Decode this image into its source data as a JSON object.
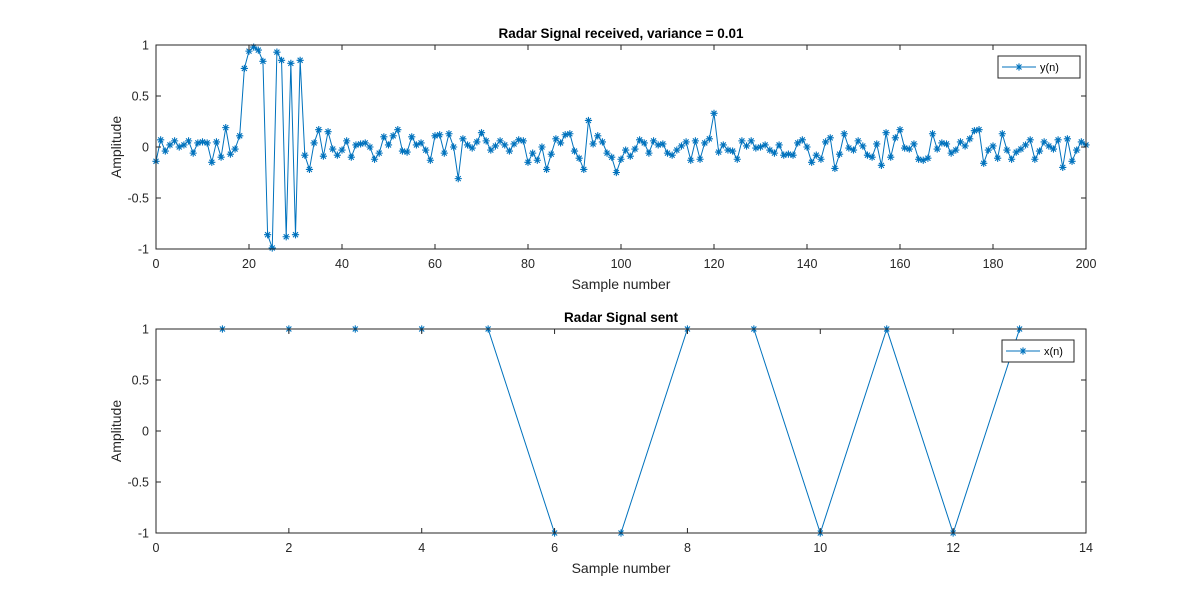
{
  "chart_data": [
    {
      "type": "line",
      "title": "Radar Signal received, variance = 0.01",
      "xlabel": "Sample number",
      "ylabel": "Amplitude",
      "xlim": [
        0,
        200
      ],
      "ylim": [
        -1,
        1
      ],
      "xticks": [
        0,
        20,
        40,
        60,
        80,
        100,
        120,
        140,
        160,
        180,
        200
      ],
      "yticks": [
        -1,
        -0.5,
        0,
        0.5,
        1
      ],
      "grid": false,
      "legend_position": "top-right",
      "marker": "*",
      "series": [
        {
          "name": "y(n)",
          "color": "#0072BD",
          "x": [
            0,
            1,
            2,
            3,
            4,
            5,
            6,
            7,
            8,
            9,
            10,
            11,
            12,
            13,
            14,
            15,
            16,
            17,
            18,
            19,
            20,
            21,
            22,
            23,
            24,
            25,
            26,
            27,
            28,
            29,
            30,
            31,
            32,
            33,
            34,
            35,
            36,
            37,
            38,
            39,
            40,
            41,
            42,
            43,
            44,
            45,
            46,
            47,
            48,
            49,
            50,
            51,
            52,
            53,
            54,
            55,
            56,
            57,
            58,
            59,
            60,
            61,
            62,
            63,
            64,
            65,
            66,
            67,
            68,
            69,
            70,
            71,
            72,
            73,
            74,
            75,
            76,
            77,
            78,
            79,
            80,
            81,
            82,
            83,
            84,
            85,
            86,
            87,
            88,
            89,
            90,
            91,
            92,
            93,
            94,
            95,
            96,
            97,
            98,
            99,
            100,
            101,
            102,
            103,
            104,
            105,
            106,
            107,
            108,
            109,
            110,
            111,
            112,
            113,
            114,
            115,
            116,
            117,
            118,
            119,
            120,
            121,
            122,
            123,
            124,
            125,
            126,
            127,
            128,
            129,
            130,
            131,
            132,
            133,
            134,
            135,
            136,
            137,
            138,
            139,
            140,
            141,
            142,
            143,
            144,
            145,
            146,
            147,
            148,
            149,
            150,
            151,
            152,
            153,
            154,
            155,
            156,
            157,
            158,
            159,
            160,
            161,
            162,
            163,
            164,
            165,
            166,
            167,
            168,
            169,
            170,
            171,
            172,
            173,
            174,
            175,
            176,
            177,
            178,
            179,
            180,
            181,
            182,
            183,
            184,
            185,
            186,
            187,
            188,
            189,
            190,
            191,
            192,
            193,
            194,
            195,
            196,
            197,
            198,
            199,
            200
          ],
          "y": [
            -0.14,
            0.07,
            -0.04,
            0.02,
            0.06,
            0.0,
            0.02,
            0.06,
            -0.06,
            0.04,
            0.05,
            0.04,
            -0.15,
            0.05,
            -0.1,
            0.19,
            -0.07,
            -0.02,
            0.11,
            0.77,
            0.94,
            0.98,
            0.95,
            0.84,
            -0.86,
            -0.99,
            0.93,
            0.85,
            -0.88,
            0.82,
            -0.86,
            0.85,
            -0.08,
            -0.22,
            0.04,
            0.17,
            -0.09,
            0.15,
            -0.02,
            -0.08,
            -0.03,
            0.06,
            -0.1,
            0.02,
            0.03,
            0.04,
            0.0,
            -0.12,
            -0.06,
            0.1,
            0.02,
            0.11,
            0.17,
            -0.04,
            -0.05,
            0.1,
            0.02,
            0.04,
            -0.03,
            -0.13,
            0.11,
            0.12,
            -0.06,
            0.13,
            0.0,
            -0.31,
            0.08,
            0.02,
            -0.01,
            0.05,
            0.14,
            0.06,
            -0.03,
            0.01,
            0.06,
            0.02,
            -0.04,
            0.03,
            0.07,
            0.06,
            -0.15,
            -0.06,
            -0.13,
            0.0,
            -0.22,
            -0.07,
            0.08,
            0.04,
            0.12,
            0.13,
            -0.04,
            -0.11,
            -0.22,
            0.26,
            0.03,
            0.11,
            0.05,
            -0.06,
            -0.1,
            -0.25,
            -0.12,
            -0.03,
            -0.09,
            -0.02,
            0.07,
            0.04,
            -0.06,
            0.06,
            0.02,
            0.03,
            -0.06,
            -0.08,
            -0.03,
            0.01,
            0.05,
            -0.13,
            0.06,
            -0.12,
            0.04,
            0.08,
            0.33,
            -0.05,
            0.02,
            -0.03,
            -0.04,
            -0.12,
            0.06,
            0.01,
            0.06,
            -0.01,
            0.0,
            0.02,
            -0.03,
            -0.06,
            0.02,
            -0.08,
            -0.07,
            -0.08,
            0.04,
            0.07,
            0.0,
            -0.15,
            -0.08,
            -0.12,
            0.05,
            0.09,
            -0.21,
            -0.07,
            0.13,
            -0.01,
            -0.03,
            0.06,
            0.01,
            -0.08,
            -0.1,
            0.03,
            -0.18,
            0.14,
            -0.1,
            0.09,
            0.17,
            -0.01,
            -0.02,
            0.03,
            -0.12,
            -0.13,
            -0.11,
            0.13,
            -0.02,
            0.04,
            0.03,
            -0.06,
            -0.03,
            0.05,
            0.01,
            0.08,
            0.16,
            0.17,
            -0.16,
            -0.03,
            0.01,
            -0.11,
            0.13,
            -0.03,
            -0.12,
            -0.05,
            -0.02,
            0.02,
            0.07,
            -0.12,
            -0.04,
            0.05,
            0.01,
            -0.02,
            0.07,
            -0.2,
            0.08,
            -0.14,
            -0.03,
            0.05,
            0.02
          ]
        }
      ]
    },
    {
      "type": "line",
      "title": "Radar Signal sent",
      "xlabel": "Sample number",
      "ylabel": "Amplitude",
      "xlim": [
        0,
        14
      ],
      "ylim": [
        -1,
        1
      ],
      "xticks": [
        0,
        2,
        4,
        6,
        8,
        10,
        12,
        14
      ],
      "yticks": [
        -1,
        -0.5,
        0,
        0.5,
        1
      ],
      "grid": false,
      "legend_position": "top-right",
      "marker": "*",
      "series": [
        {
          "name": "x(n)",
          "color": "#0072BD",
          "x": [
            1,
            2,
            3,
            4,
            5,
            6,
            7,
            8,
            9,
            10,
            11,
            12,
            13
          ],
          "y": [
            1,
            1,
            1,
            1,
            1,
            -1,
            -1,
            1,
            1,
            -1,
            1,
            -1,
            1
          ]
        }
      ]
    }
  ]
}
